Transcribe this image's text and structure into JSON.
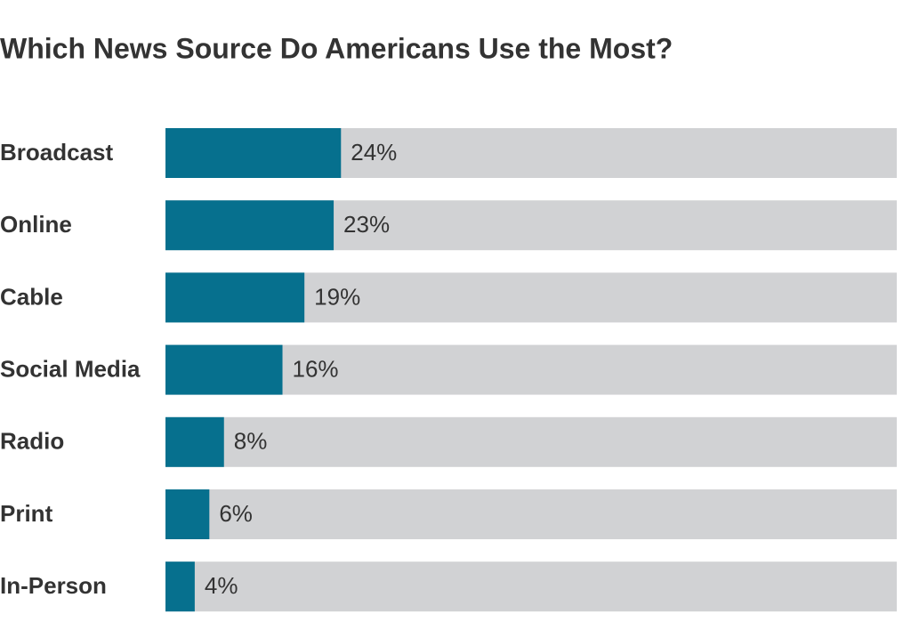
{
  "chart_data": {
    "type": "bar",
    "orientation": "horizontal",
    "title": "Which News Source Do Americans Use the Most?",
    "categories": [
      "Broadcast",
      "Online",
      "Cable",
      "Social Media",
      "Radio",
      "Print",
      "In-Person"
    ],
    "values": [
      24,
      23,
      19,
      16,
      8,
      6,
      4
    ],
    "value_labels": [
      "24%",
      "23%",
      "19%",
      "16%",
      "8%",
      "6%",
      "4%"
    ],
    "color": "#06708e",
    "track_color": "#d1d2d4",
    "xlim": [
      0,
      100
    ]
  }
}
